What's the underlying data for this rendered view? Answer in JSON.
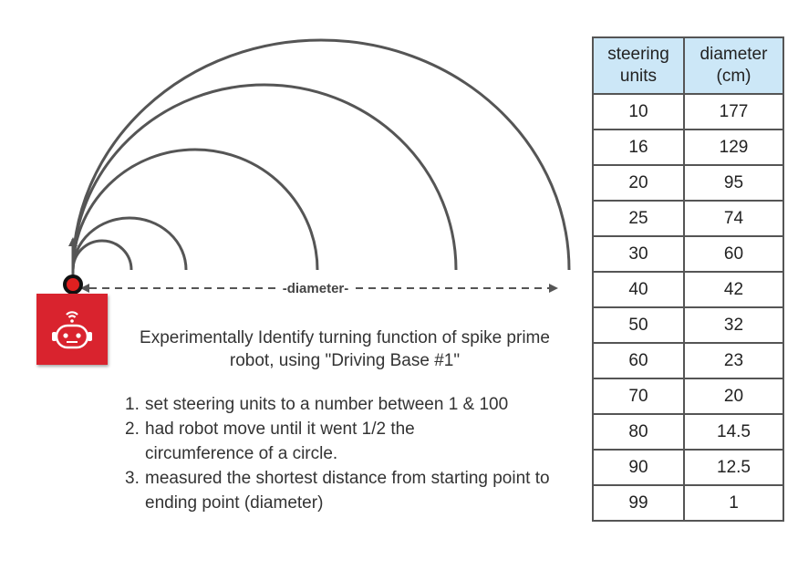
{
  "diagram": {
    "diameter_label": "-diameter-"
  },
  "description": {
    "title": "Experimentally Identify turning function of spike prime robot, using \"Driving Base #1\"",
    "steps": [
      {
        "number": "1.",
        "text": "set steering units to a number between 1 & 100"
      },
      {
        "number": "2.",
        "text": "had robot move until it went 1/2 the circumference of a circle."
      },
      {
        "number": "3.",
        "text": "measured the shortest distance from starting point to ending point (diameter)"
      }
    ]
  },
  "table": {
    "headers": [
      "steering units",
      "diameter (cm)"
    ],
    "rows": [
      [
        "10",
        "177"
      ],
      [
        "16",
        "129"
      ],
      [
        "20",
        "95"
      ],
      [
        "25",
        "74"
      ],
      [
        "30",
        "60"
      ],
      [
        "40",
        "42"
      ],
      [
        "50",
        "32"
      ],
      [
        "60",
        "23"
      ],
      [
        "70",
        "20"
      ],
      [
        "80",
        "14.5"
      ],
      [
        "90",
        "12.5"
      ],
      [
        "99",
        "1"
      ]
    ]
  },
  "icons": {
    "robot": "robot-icon",
    "start_dot": "start-point-dot"
  },
  "colors": {
    "robot_tile": "#d9232e",
    "table_header": "#cce7f7",
    "arc_stroke": "#555555"
  }
}
